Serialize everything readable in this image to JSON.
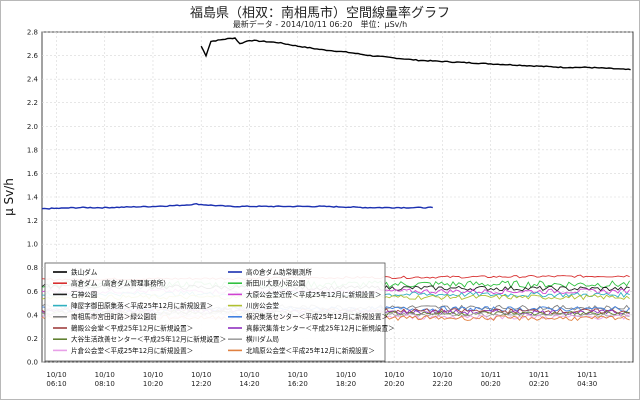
{
  "title": "福島県（相双：南相馬市）空間線量率グラフ",
  "subtitle": "最新データ - 2014/10/11 06:20　単位：μSv/h",
  "chart_data": {
    "type": "line",
    "ylabel": "μ Sv/h",
    "ylim": [
      0.0,
      2.8
    ],
    "yticks": [
      "0.0",
      "0.2",
      "0.4",
      "0.6",
      "0.8",
      "1.0",
      "1.2",
      "1.4",
      "1.6",
      "1.8",
      "2.0",
      "2.2",
      "2.4",
      "2.6",
      "2.8"
    ],
    "x_labels": [
      {
        "date": "10/10",
        "time": "06:10"
      },
      {
        "date": "10/10",
        "time": "08:10"
      },
      {
        "date": "10/10",
        "time": "10:20"
      },
      {
        "date": "10/10",
        "time": "12:20"
      },
      {
        "date": "10/10",
        "time": "14:20"
      },
      {
        "date": "10/10",
        "time": "16:20"
      },
      {
        "date": "10/10",
        "time": "18:20"
      },
      {
        "date": "10/10",
        "time": "20:20"
      },
      {
        "date": "10/10",
        "time": "22:20"
      },
      {
        "date": "10/11",
        "time": "00:20"
      },
      {
        "date": "10/11",
        "time": "02:20"
      },
      {
        "date": "10/11",
        "time": "04:30"
      }
    ],
    "grid": true,
    "legend_position": "bottom-left",
    "series": [
      {
        "name": "鉄山ダム",
        "color": "#000000",
        "start": 3.0,
        "end": 11.9,
        "points": [
          [
            3.0,
            2.68
          ],
          [
            3.1,
            2.6
          ],
          [
            3.2,
            2.72
          ],
          [
            3.5,
            2.74
          ],
          [
            3.7,
            2.75
          ],
          [
            3.8,
            2.7
          ],
          [
            4.0,
            2.73
          ],
          [
            4.3,
            2.72
          ],
          [
            4.6,
            2.71
          ],
          [
            5.0,
            2.68
          ],
          [
            5.5,
            2.65
          ],
          [
            6.0,
            2.63
          ],
          [
            6.5,
            2.6
          ],
          [
            7.0,
            2.58
          ],
          [
            7.5,
            2.56
          ],
          [
            8.0,
            2.55
          ],
          [
            8.5,
            2.54
          ],
          [
            9.0,
            2.53
          ],
          [
            9.5,
            2.52
          ],
          [
            10.0,
            2.51
          ],
          [
            10.5,
            2.5
          ],
          [
            11.0,
            2.5
          ],
          [
            11.5,
            2.49
          ],
          [
            11.9,
            2.48
          ]
        ]
      },
      {
        "name": "高の倉ダム助常観測所",
        "color": "#1a2fb0",
        "start": -0.3,
        "end": 7.8,
        "points": [
          [
            -0.3,
            1.3
          ],
          [
            0.5,
            1.31
          ],
          [
            1.0,
            1.31
          ],
          [
            2.0,
            1.32
          ],
          [
            2.6,
            1.33
          ],
          [
            2.9,
            1.34
          ],
          [
            3.2,
            1.33
          ],
          [
            3.6,
            1.32
          ],
          [
            4.5,
            1.32
          ],
          [
            5.5,
            1.32
          ],
          [
            6.5,
            1.31
          ],
          [
            7.8,
            1.31
          ]
        ]
      },
      {
        "name": "高倉ダム（高倉ダム管理事務所）",
        "color": "#d83030",
        "start": -0.3,
        "end": 11.9,
        "points": [
          [
            -0.3,
            0.7
          ],
          [
            11.9,
            0.73
          ]
        ],
        "noise": 0.01
      },
      {
        "name": "新田川大原小沼公園",
        "color": "#30c040",
        "start": -0.3,
        "end": 11.9,
        "points": [
          [
            -0.3,
            0.66
          ],
          [
            11.9,
            0.66
          ]
        ],
        "noise": 0.03
      },
      {
        "name": "石神公園",
        "color": "#202020",
        "start": -0.3,
        "end": 11.9,
        "points": [
          [
            -0.3,
            0.64
          ],
          [
            11.9,
            0.62
          ]
        ],
        "noise": 0.02
      },
      {
        "name": "大原公会堂近傍＜平成25年12月に新規設置＞",
        "color": "#d040d0",
        "start": -0.3,
        "end": 11.9,
        "points": [
          [
            -0.3,
            0.6
          ],
          [
            11.9,
            0.6
          ]
        ],
        "noise": 0.02
      },
      {
        "name": "陣屋字御田原集落＜平成25年12月に新規設置＞",
        "color": "#30b0c0",
        "start": -0.3,
        "end": 11.9,
        "points": [
          [
            -0.3,
            0.58
          ],
          [
            11.9,
            0.57
          ]
        ],
        "noise": 0.02
      },
      {
        "name": "川房公会堂",
        "color": "#b0c030",
        "start": -0.3,
        "end": 11.9,
        "points": [
          [
            -0.3,
            0.55
          ],
          [
            11.9,
            0.55
          ]
        ],
        "noise": 0.02
      },
      {
        "name": "南相馬市宮田町路＞緑公園前",
        "color": "#808080",
        "start": -0.3,
        "end": 11.9,
        "points": [
          [
            -0.3,
            0.47
          ],
          [
            11.9,
            0.46
          ]
        ],
        "noise": 0.02
      },
      {
        "name": "横沢集落センター＜平成25年12月に新規設置＞",
        "color": "#4080e0",
        "start": -0.3,
        "end": 11.9,
        "points": [
          [
            -0.3,
            0.45
          ],
          [
            11.9,
            0.45
          ]
        ],
        "noise": 0.02
      },
      {
        "name": "鶴殿公会堂＜平成25年12月に新規設置＞",
        "color": "#a04040",
        "start": -0.3,
        "end": 11.9,
        "points": [
          [
            -0.3,
            0.44
          ],
          [
            11.9,
            0.43
          ]
        ],
        "noise": 0.02
      },
      {
        "name": "真藤沢集落センター＜平成25年12月に新規設置＞",
        "color": "#9030c0",
        "start": -0.3,
        "end": 11.9,
        "points": [
          [
            -0.3,
            0.43
          ],
          [
            11.9,
            0.42
          ]
        ],
        "noise": 0.02
      },
      {
        "name": "大谷生活改善センター＜平成25年12月に新規設置＞",
        "color": "#608030",
        "start": -0.3,
        "end": 11.9,
        "points": [
          [
            -0.3,
            0.42
          ],
          [
            11.9,
            0.41
          ]
        ],
        "noise": 0.02
      },
      {
        "name": "横川ダム局",
        "color": "#a0a0a0",
        "start": -0.3,
        "end": 11.9,
        "points": [
          [
            -0.3,
            0.41
          ],
          [
            11.9,
            0.4
          ]
        ],
        "noise": 0.015
      },
      {
        "name": "片倉公会堂＜平成25年12月に新規設置＞",
        "color": "#e8a0e8",
        "start": -0.3,
        "end": 11.9,
        "points": [
          [
            -0.3,
            0.39
          ],
          [
            11.9,
            0.38
          ]
        ],
        "noise": 0.02
      },
      {
        "name": "北鳩原公会堂＜平成25年12月に新規設置＞",
        "color": "#e08040",
        "start": -0.3,
        "end": 11.9,
        "points": [
          [
            -0.3,
            0.38
          ],
          [
            11.9,
            0.37
          ]
        ],
        "noise": 0.02
      }
    ]
  }
}
